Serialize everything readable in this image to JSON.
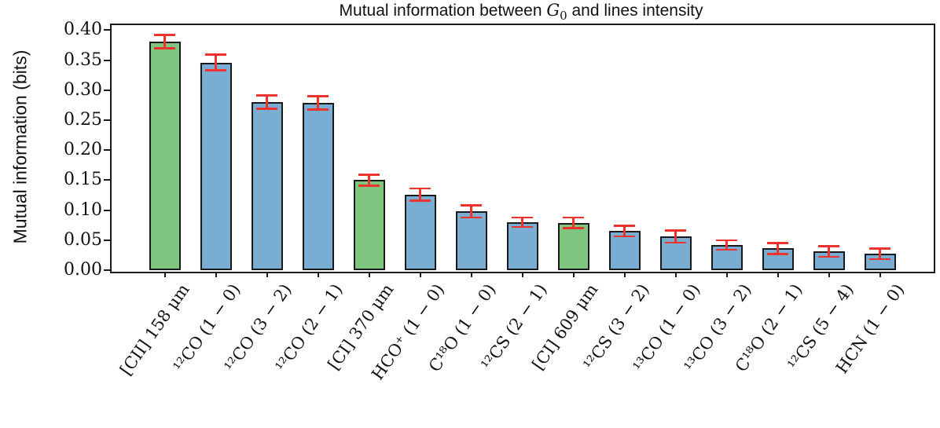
{
  "title": {
    "prefix": "Mutual information between ",
    "math_var": "G",
    "math_sub": "0",
    "suffix": " and lines intensity"
  },
  "ylabel": "Mutual information (bits)",
  "colors": {
    "green": "#80c680",
    "blue": "#79add2",
    "error": "#ed332b",
    "edge": "#1a1a1a",
    "axis": "#1c1c1c"
  },
  "chart_data": {
    "type": "bar",
    "title": "Mutual information between G₀ and lines intensity",
    "xlabel": "",
    "ylabel": "Mutual information (bits)",
    "ylim": [
      0,
      0.411
    ],
    "yticks": [
      0.0,
      0.05,
      0.1,
      0.15,
      0.2,
      0.25,
      0.3,
      0.35,
      0.4
    ],
    "grid": false,
    "legend": false,
    "error_bars": true,
    "categories": [
      "[CII] 158 μm",
      "¹²CO (1 − 0)",
      "¹²CO (3 − 2)",
      "¹²CO (2 − 1)",
      "[CI] 370 μm",
      "HCO⁺ (1 − 0)",
      "C¹⁸O (1 − 0)",
      "¹²CS (2 − 1)",
      "[CI] 609 μm",
      "¹²CS (3 − 2)",
      "¹³CO (1 − 0)",
      "¹³CO (3 − 2)",
      "C¹⁸O (2 − 1)",
      "¹²CS (5 − 4)",
      "HCN (1 − 0)"
    ],
    "values": [
      0.381,
      0.346,
      0.28,
      0.279,
      0.15,
      0.126,
      0.098,
      0.08,
      0.079,
      0.065,
      0.056,
      0.042,
      0.036,
      0.031,
      0.027
    ],
    "errors": [
      0.011,
      0.013,
      0.011,
      0.011,
      0.009,
      0.01,
      0.01,
      0.008,
      0.009,
      0.009,
      0.01,
      0.008,
      0.009,
      0.009,
      0.009
    ],
    "bar_colors": [
      "green",
      "blue",
      "blue",
      "blue",
      "green",
      "blue",
      "blue",
      "blue",
      "green",
      "blue",
      "blue",
      "blue",
      "blue",
      "blue",
      "blue"
    ]
  }
}
